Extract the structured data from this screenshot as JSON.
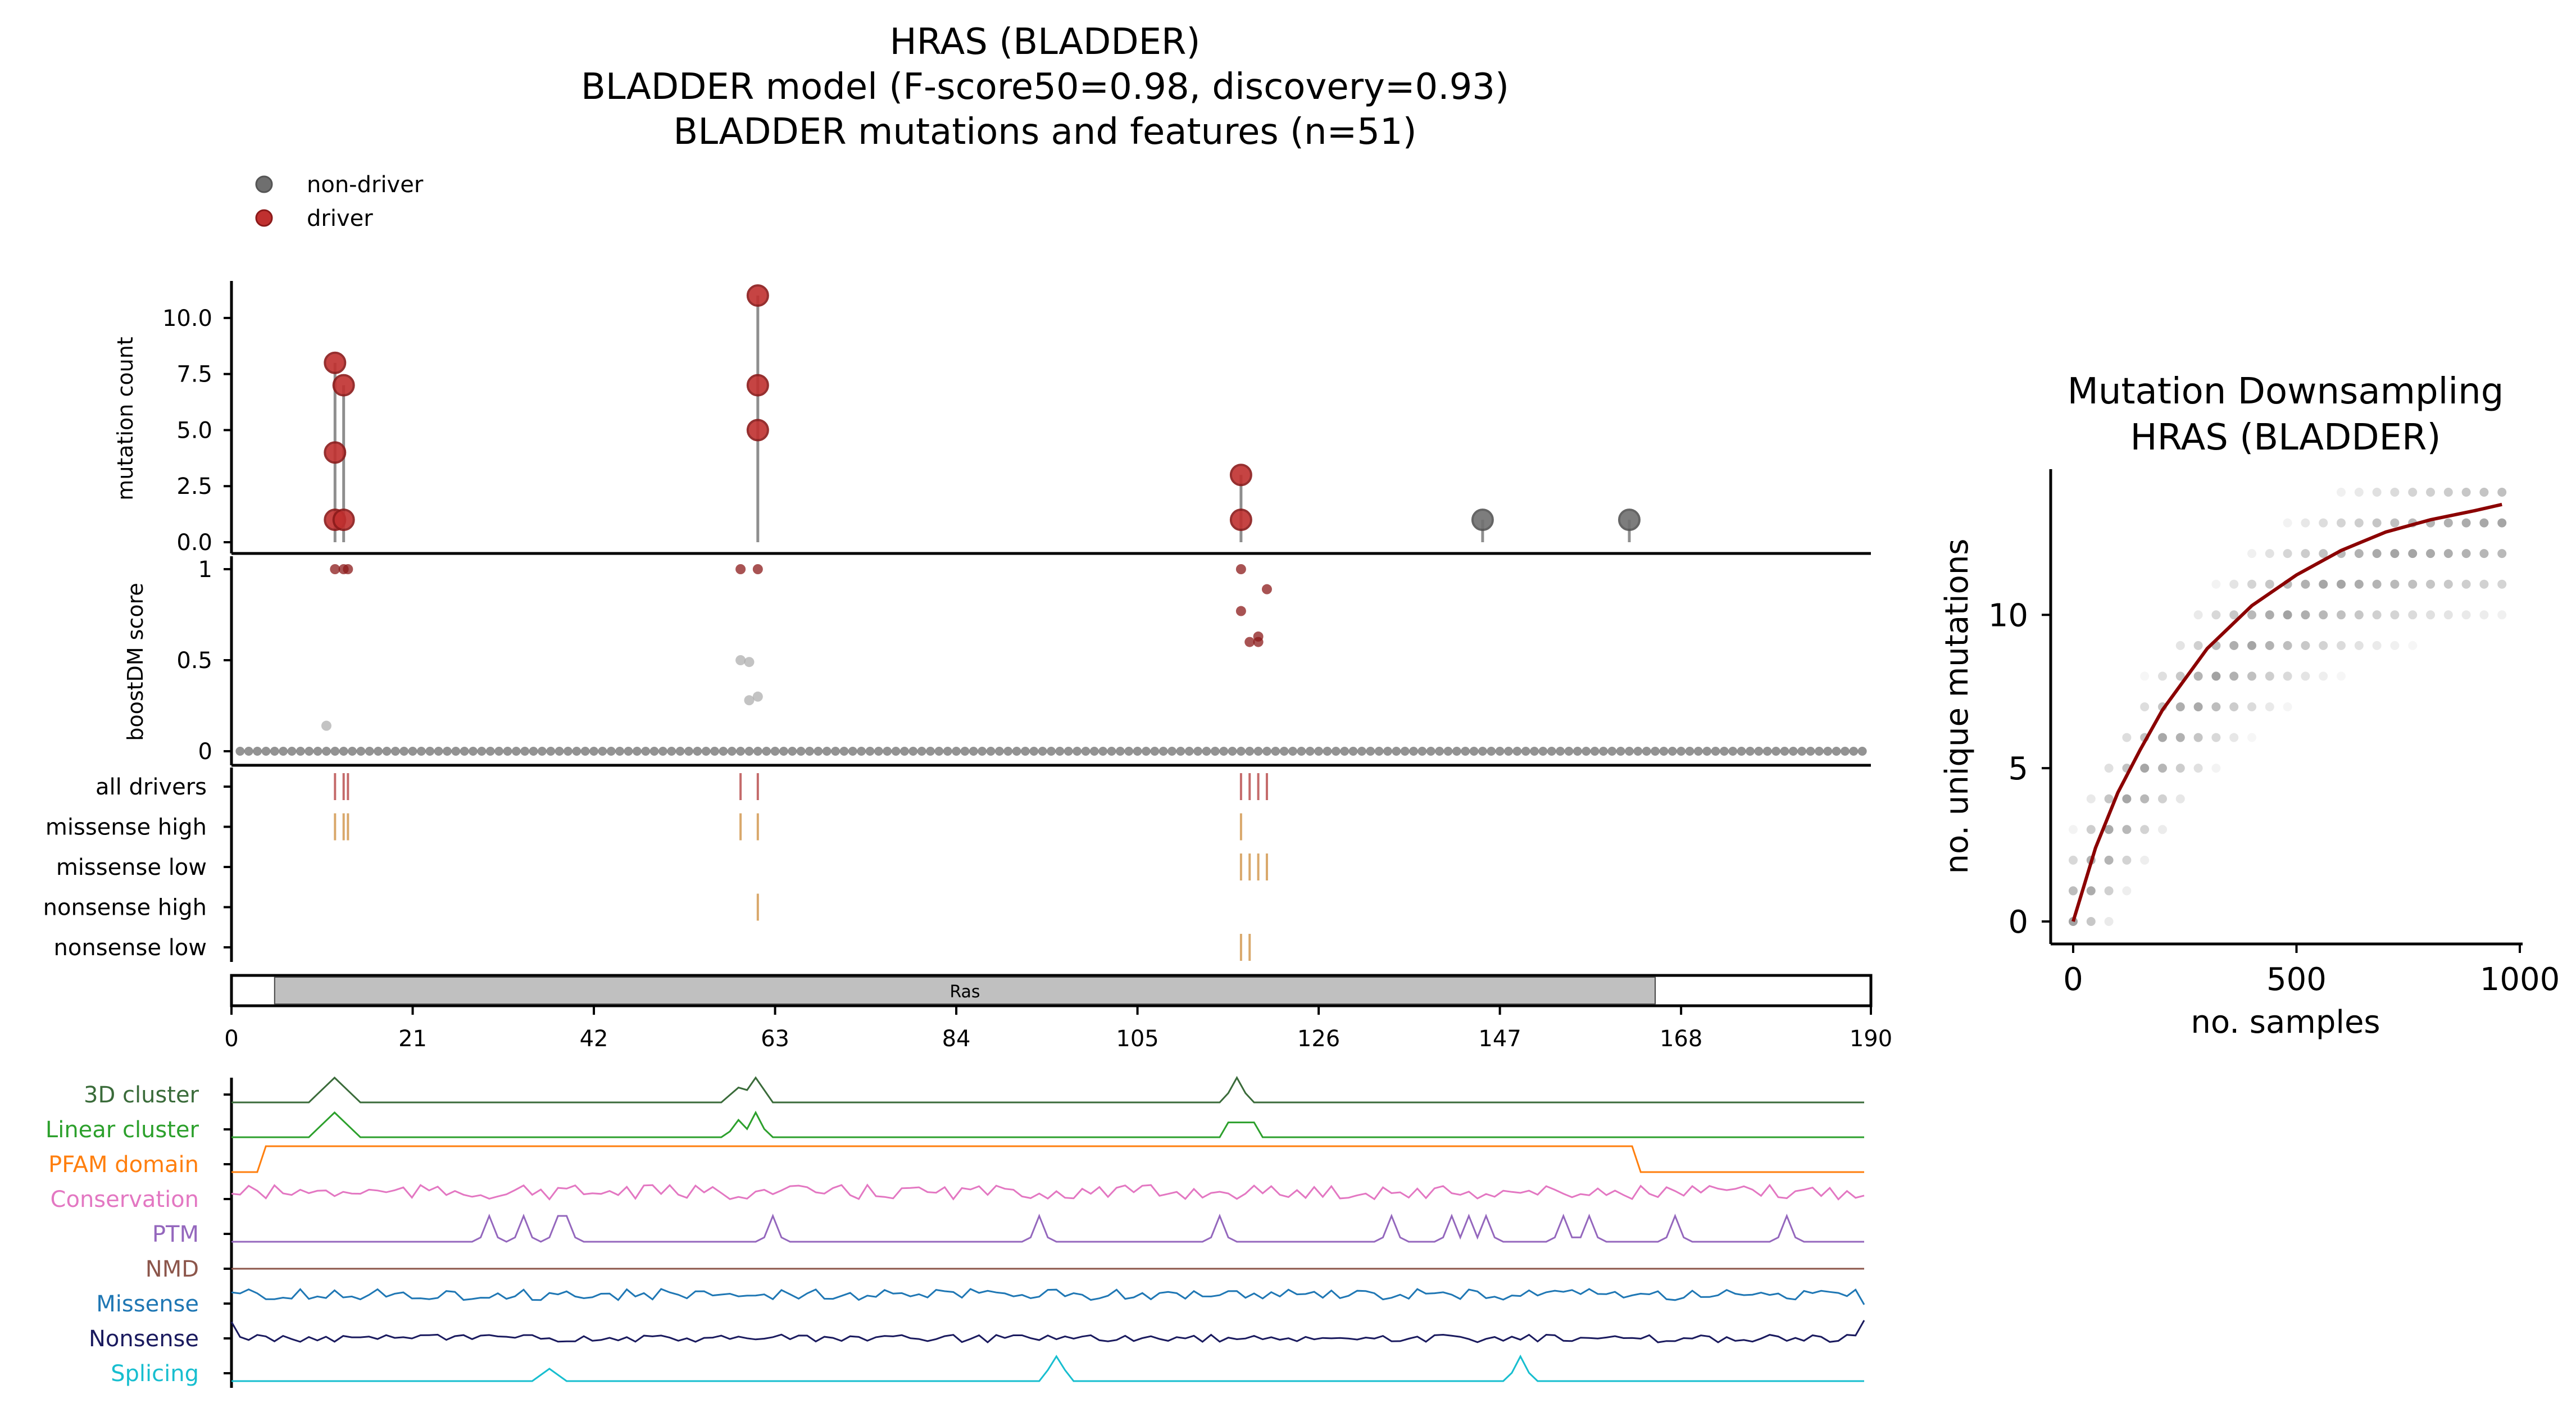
{
  "header": {
    "title": "HRAS (BLADDER)",
    "subtitle": "BLADDER model (F-score50=0.98, discovery=0.93)",
    "subtitle2": "BLADDER mutations and features (n=51)"
  },
  "legend": [
    {
      "label": "non-driver",
      "color": "#6f6f6f"
    },
    {
      "label": "driver",
      "color": "#c0302f"
    }
  ],
  "colors": {
    "driver": "#c0302f",
    "driver_dark": "#8b1a1a",
    "nondriver": "#6f6f6f",
    "lightgray": "#c8c8c8",
    "tick_driver": "#c46a6a",
    "tick_class": "#d9a86b",
    "domain": "#c0c0c0",
    "fit": "#8b0000"
  },
  "chart_data": [
    {
      "type": "scatter",
      "title": "",
      "ylabel": "mutation count",
      "ylim": [
        0,
        11.5
      ],
      "yticks": [
        0.0,
        2.5,
        5.0,
        7.5,
        10.0
      ],
      "yticklabels": [
        "0.0",
        "2.5",
        "5.0",
        "7.5",
        "10.0"
      ],
      "xlim": [
        0,
        190
      ],
      "series": [
        {
          "name": "driver",
          "points": [
            [
              12,
              1
            ],
            [
              12,
              4
            ],
            [
              12,
              8
            ],
            [
              13,
              1
            ],
            [
              13,
              7
            ],
            [
              61,
              5
            ],
            [
              61,
              7
            ],
            [
              61,
              11
            ],
            [
              117,
              1
            ],
            [
              117,
              3
            ]
          ]
        },
        {
          "name": "non-driver",
          "points": [
            [
              145,
              1
            ],
            [
              162,
              1
            ]
          ]
        }
      ]
    },
    {
      "type": "scatter",
      "ylabel": "boostDM score",
      "ylim": [
        0,
        1
      ],
      "yticks": [
        0,
        0.5,
        1
      ],
      "yticklabels": [
        "0",
        "0.5",
        "1"
      ],
      "drivers": [
        [
          12,
          1
        ],
        [
          13,
          1
        ],
        [
          13.5,
          1
        ],
        [
          59,
          1
        ],
        [
          61,
          1
        ],
        [
          117,
          1
        ],
        [
          117,
          0.77
        ],
        [
          118,
          0.6
        ],
        [
          119,
          0.6
        ],
        [
          119,
          0.63
        ],
        [
          120,
          0.89
        ]
      ],
      "nondrivers": [
        [
          11,
          0.14
        ],
        [
          59,
          0.5
        ],
        [
          60,
          0.49
        ],
        [
          60,
          0.28
        ],
        [
          61,
          0.3
        ]
      ]
    },
    {
      "type": "table",
      "rows": [
        "all drivers",
        "missense high",
        "missense low",
        "nonsense high",
        "nonsense low"
      ],
      "ticks": [
        [
          12,
          13,
          13.5,
          59,
          61,
          117,
          118,
          119,
          120
        ],
        [
          12,
          13,
          13.5,
          59,
          61,
          117
        ],
        [
          117,
          118,
          119,
          120
        ],
        [
          61
        ],
        [
          117,
          118
        ]
      ],
      "domain": {
        "label": "Ras",
        "start": 5,
        "end": 165
      },
      "xticks": [
        0,
        21,
        42,
        63,
        84,
        105,
        126,
        147,
        168,
        190
      ],
      "xticklabels": [
        "0",
        "21",
        "42",
        "63",
        "84",
        "105",
        "126",
        "147",
        "168",
        "190"
      ]
    },
    {
      "type": "line",
      "tracks": [
        {
          "name": "3D cluster",
          "color": "#3a6b3a"
        },
        {
          "name": "Linear cluster",
          "color": "#2ca02c"
        },
        {
          "name": "PFAM domain",
          "color": "#ff7f0e"
        },
        {
          "name": "Conservation",
          "color": "#e377c2"
        },
        {
          "name": "PTM",
          "color": "#9467bd"
        },
        {
          "name": "NMD",
          "color": "#8c564b"
        },
        {
          "name": "Missense",
          "color": "#1f77b4"
        },
        {
          "name": "Nonsense",
          "color": "#1a1a5e"
        },
        {
          "name": "Splicing",
          "color": "#17becf"
        }
      ]
    },
    {
      "type": "scatter",
      "title": "Mutation Downsampling",
      "subtitle": "HRAS (BLADDER)",
      "xlabel": "no. samples",
      "ylabel": "no. unique mutations",
      "xlim": [
        0,
        1000
      ],
      "ylim": [
        0,
        14
      ],
      "xticks": [
        0,
        500,
        1000
      ],
      "xticklabels": [
        "0",
        "500",
        "1000"
      ],
      "yticks": [
        0,
        5,
        10
      ],
      "yticklabels": [
        "0",
        "5",
        "10"
      ],
      "fit": [
        [
          0,
          0
        ],
        [
          50,
          2.4
        ],
        [
          100,
          4.2
        ],
        [
          150,
          5.6
        ],
        [
          200,
          6.9
        ],
        [
          300,
          8.9
        ],
        [
          400,
          10.3
        ],
        [
          500,
          11.3
        ],
        [
          600,
          12.1
        ],
        [
          700,
          12.7
        ],
        [
          800,
          13.1
        ],
        [
          900,
          13.4
        ],
        [
          960,
          13.6
        ]
      ]
    }
  ]
}
